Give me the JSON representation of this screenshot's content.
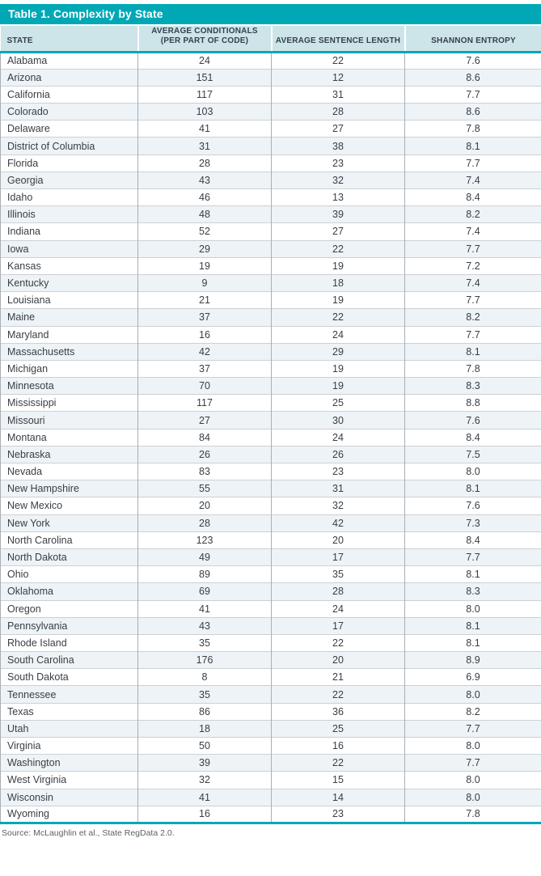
{
  "chart_data": {
    "type": "table",
    "title": "Table 1. Complexity by State",
    "source": "Source: McLaughlin et al., State RegData 2.0.",
    "columns": [
      "STATE",
      "AVERAGE CONDITIONALS (PER PART OF CODE)",
      "AVERAGE SENTENCE LENGTH",
      "SHANNON ENTROPY"
    ],
    "rows": [
      [
        "Alabama",
        "24",
        "22",
        "7.6"
      ],
      [
        "Arizona",
        "151",
        "12",
        "8.6"
      ],
      [
        "California",
        "117",
        "31",
        "7.7"
      ],
      [
        "Colorado",
        "103",
        "28",
        "8.6"
      ],
      [
        "Delaware",
        "41",
        "27",
        "7.8"
      ],
      [
        "District of Columbia",
        "31",
        "38",
        "8.1"
      ],
      [
        "Florida",
        "28",
        "23",
        "7.7"
      ],
      [
        "Georgia",
        "43",
        "32",
        "7.4"
      ],
      [
        "Idaho",
        "46",
        "13",
        "8.4"
      ],
      [
        "Illinois",
        "48",
        "39",
        "8.2"
      ],
      [
        "Indiana",
        "52",
        "27",
        "7.4"
      ],
      [
        "Iowa",
        "29",
        "22",
        "7.7"
      ],
      [
        "Kansas",
        "19",
        "19",
        "7.2"
      ],
      [
        "Kentucky",
        "9",
        "18",
        "7.4"
      ],
      [
        "Louisiana",
        "21",
        "19",
        "7.7"
      ],
      [
        "Maine",
        "37",
        "22",
        "8.2"
      ],
      [
        "Maryland",
        "16",
        "24",
        "7.7"
      ],
      [
        "Massachusetts",
        "42",
        "29",
        "8.1"
      ],
      [
        "Michigan",
        "37",
        "19",
        "7.8"
      ],
      [
        "Minnesota",
        "70",
        "19",
        "8.3"
      ],
      [
        "Mississippi",
        "117",
        "25",
        "8.8"
      ],
      [
        "Missouri",
        "27",
        "30",
        "7.6"
      ],
      [
        "Montana",
        "84",
        "24",
        "8.4"
      ],
      [
        "Nebraska",
        "26",
        "26",
        "7.5"
      ],
      [
        "Nevada",
        "83",
        "23",
        "8.0"
      ],
      [
        "New Hampshire",
        "55",
        "31",
        "8.1"
      ],
      [
        "New Mexico",
        "20",
        "32",
        "7.6"
      ],
      [
        "New York",
        "28",
        "42",
        "7.3"
      ],
      [
        "North Carolina",
        "123",
        "20",
        "8.4"
      ],
      [
        "North Dakota",
        "49",
        "17",
        "7.7"
      ],
      [
        "Ohio",
        "89",
        "35",
        "8.1"
      ],
      [
        "Oklahoma",
        "69",
        "28",
        "8.3"
      ],
      [
        "Oregon",
        "41",
        "24",
        "8.0"
      ],
      [
        "Pennsylvania",
        "43",
        "17",
        "8.1"
      ],
      [
        "Rhode Island",
        "35",
        "22",
        "8.1"
      ],
      [
        "South Carolina",
        "176",
        "20",
        "8.9"
      ],
      [
        "South Dakota",
        "8",
        "21",
        "6.9"
      ],
      [
        "Tennessee",
        "35",
        "22",
        "8.0"
      ],
      [
        "Texas",
        "86",
        "36",
        "8.2"
      ],
      [
        "Utah",
        "18",
        "25",
        "7.7"
      ],
      [
        "Virginia",
        "50",
        "16",
        "8.0"
      ],
      [
        "Washington",
        "39",
        "22",
        "7.7"
      ],
      [
        "West Virginia",
        "32",
        "15",
        "8.0"
      ],
      [
        "Wisconsin",
        "41",
        "14",
        "8.0"
      ],
      [
        "Wyoming",
        "16",
        "23",
        "7.8"
      ]
    ],
    "layout": {
      "striped_rows": true,
      "first_column_align": "left",
      "numeric_columns_align": "center"
    },
    "colors": {
      "accent_teal": "#00a8b6",
      "header_bg": "#cde4e9",
      "alt_row_bg": "#edf3f6",
      "title_text": "#ffffff",
      "body_text": "#3a3e44",
      "source_text": "#5c6267"
    }
  }
}
